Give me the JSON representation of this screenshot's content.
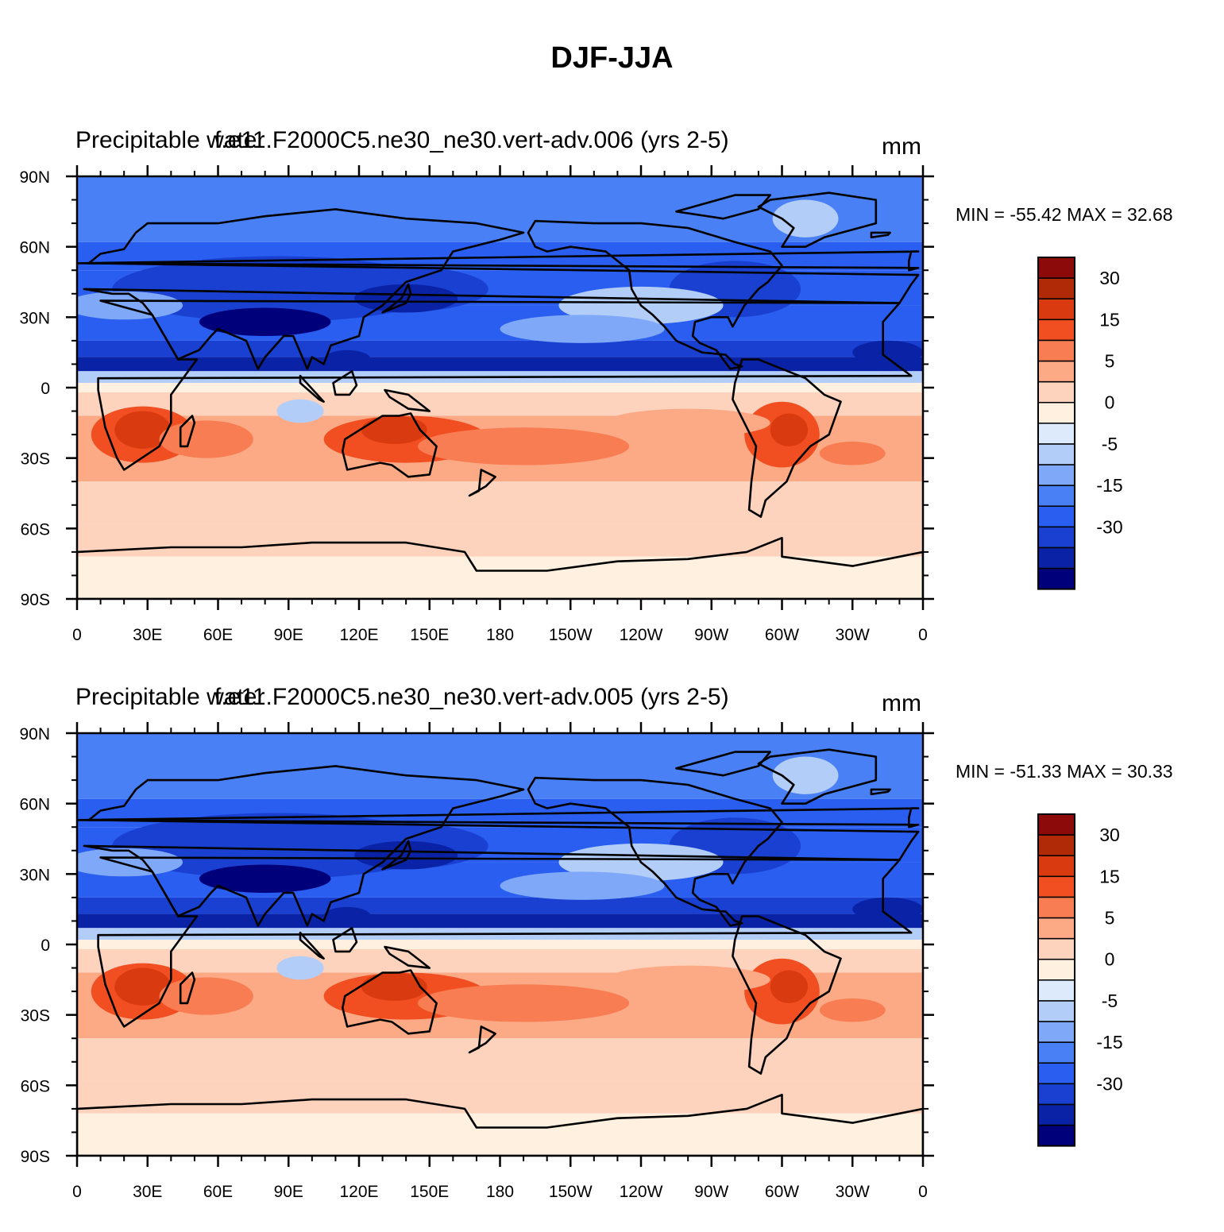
{
  "title": "DJF-JJA",
  "colorbar": {
    "colors": [
      "#00007a",
      "#0a23a6",
      "#1a40d1",
      "#2a5ef0",
      "#4a80f5",
      "#7fa8f8",
      "#b3cdf9",
      "#dceafc",
      "#fff0e0",
      "#fdd3be",
      "#fcaa86",
      "#f87d52",
      "#f14f22",
      "#d93a10",
      "#b02a08",
      "#8c0a0a"
    ],
    "labels": [
      {
        "text": "-30",
        "index": 2
      },
      {
        "text": "-15",
        "index": 4
      },
      {
        "text": "-5",
        "index": 6
      },
      {
        "text": "0",
        "index": 8
      },
      {
        "text": "5",
        "index": 10
      },
      {
        "text": "15",
        "index": 12
      },
      {
        "text": "30",
        "index": 14
      }
    ]
  },
  "axes": {
    "lat_labels": [
      "90N",
      "60N",
      "30N",
      "0",
      "30S",
      "60S",
      "90S"
    ],
    "lon_labels": [
      "0",
      "30E",
      "60E",
      "90E",
      "120E",
      "150E",
      "180",
      "150W",
      "120W",
      "90W",
      "60W",
      "30W",
      "0"
    ]
  },
  "panels": [
    {
      "title_left": "Precipitable water",
      "title_center": "f.e11.F2000C5.ne30_ne30.vert-adv.006 (yrs 2-5)",
      "units": "mm",
      "minmax": "MIN = -55.42 MAX =  32.68"
    },
    {
      "title_left": "Precipitable water",
      "title_center": "f.e11.F2000C5.ne30_ne30.vert-adv.005 (yrs 2-5)",
      "units": "mm",
      "minmax": "MIN = -51.33 MAX =  30.33"
    }
  ]
}
